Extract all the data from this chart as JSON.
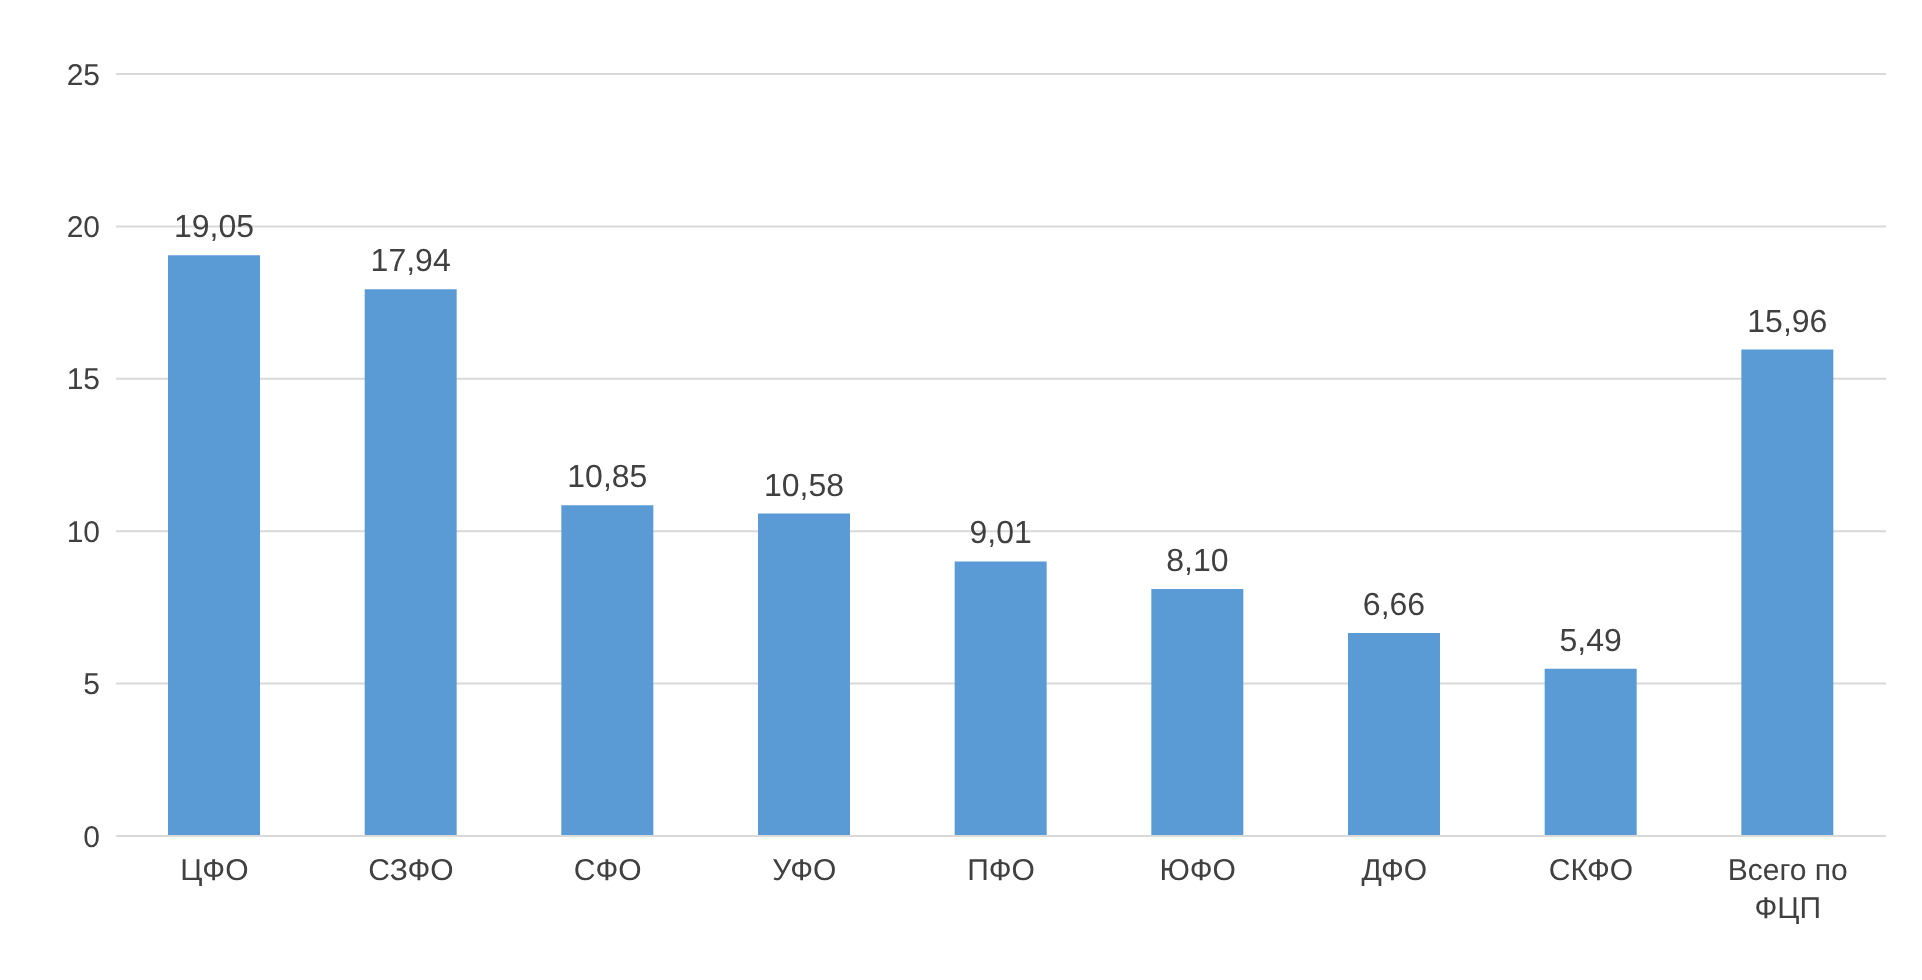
{
  "chart_data": {
    "type": "bar",
    "categories": [
      "ЦФО",
      "СЗФО",
      "СФО",
      "УФО",
      "ПФО",
      "ЮФО",
      "ДФО",
      "СКФО",
      "Всего по ФЦП"
    ],
    "values": [
      19.05,
      17.94,
      10.85,
      10.58,
      9.01,
      8.1,
      6.66,
      5.49,
      15.96
    ],
    "value_labels": [
      "19,05",
      "17,94",
      "10,85",
      "10,58",
      "9,01",
      "8,10",
      "6,66",
      "5,49",
      "15,96"
    ],
    "color": "#5b9bd5",
    "ylim": [
      0,
      25
    ],
    "yticks": [
      0,
      5,
      10,
      15,
      20,
      25
    ],
    "grid": "y"
  }
}
